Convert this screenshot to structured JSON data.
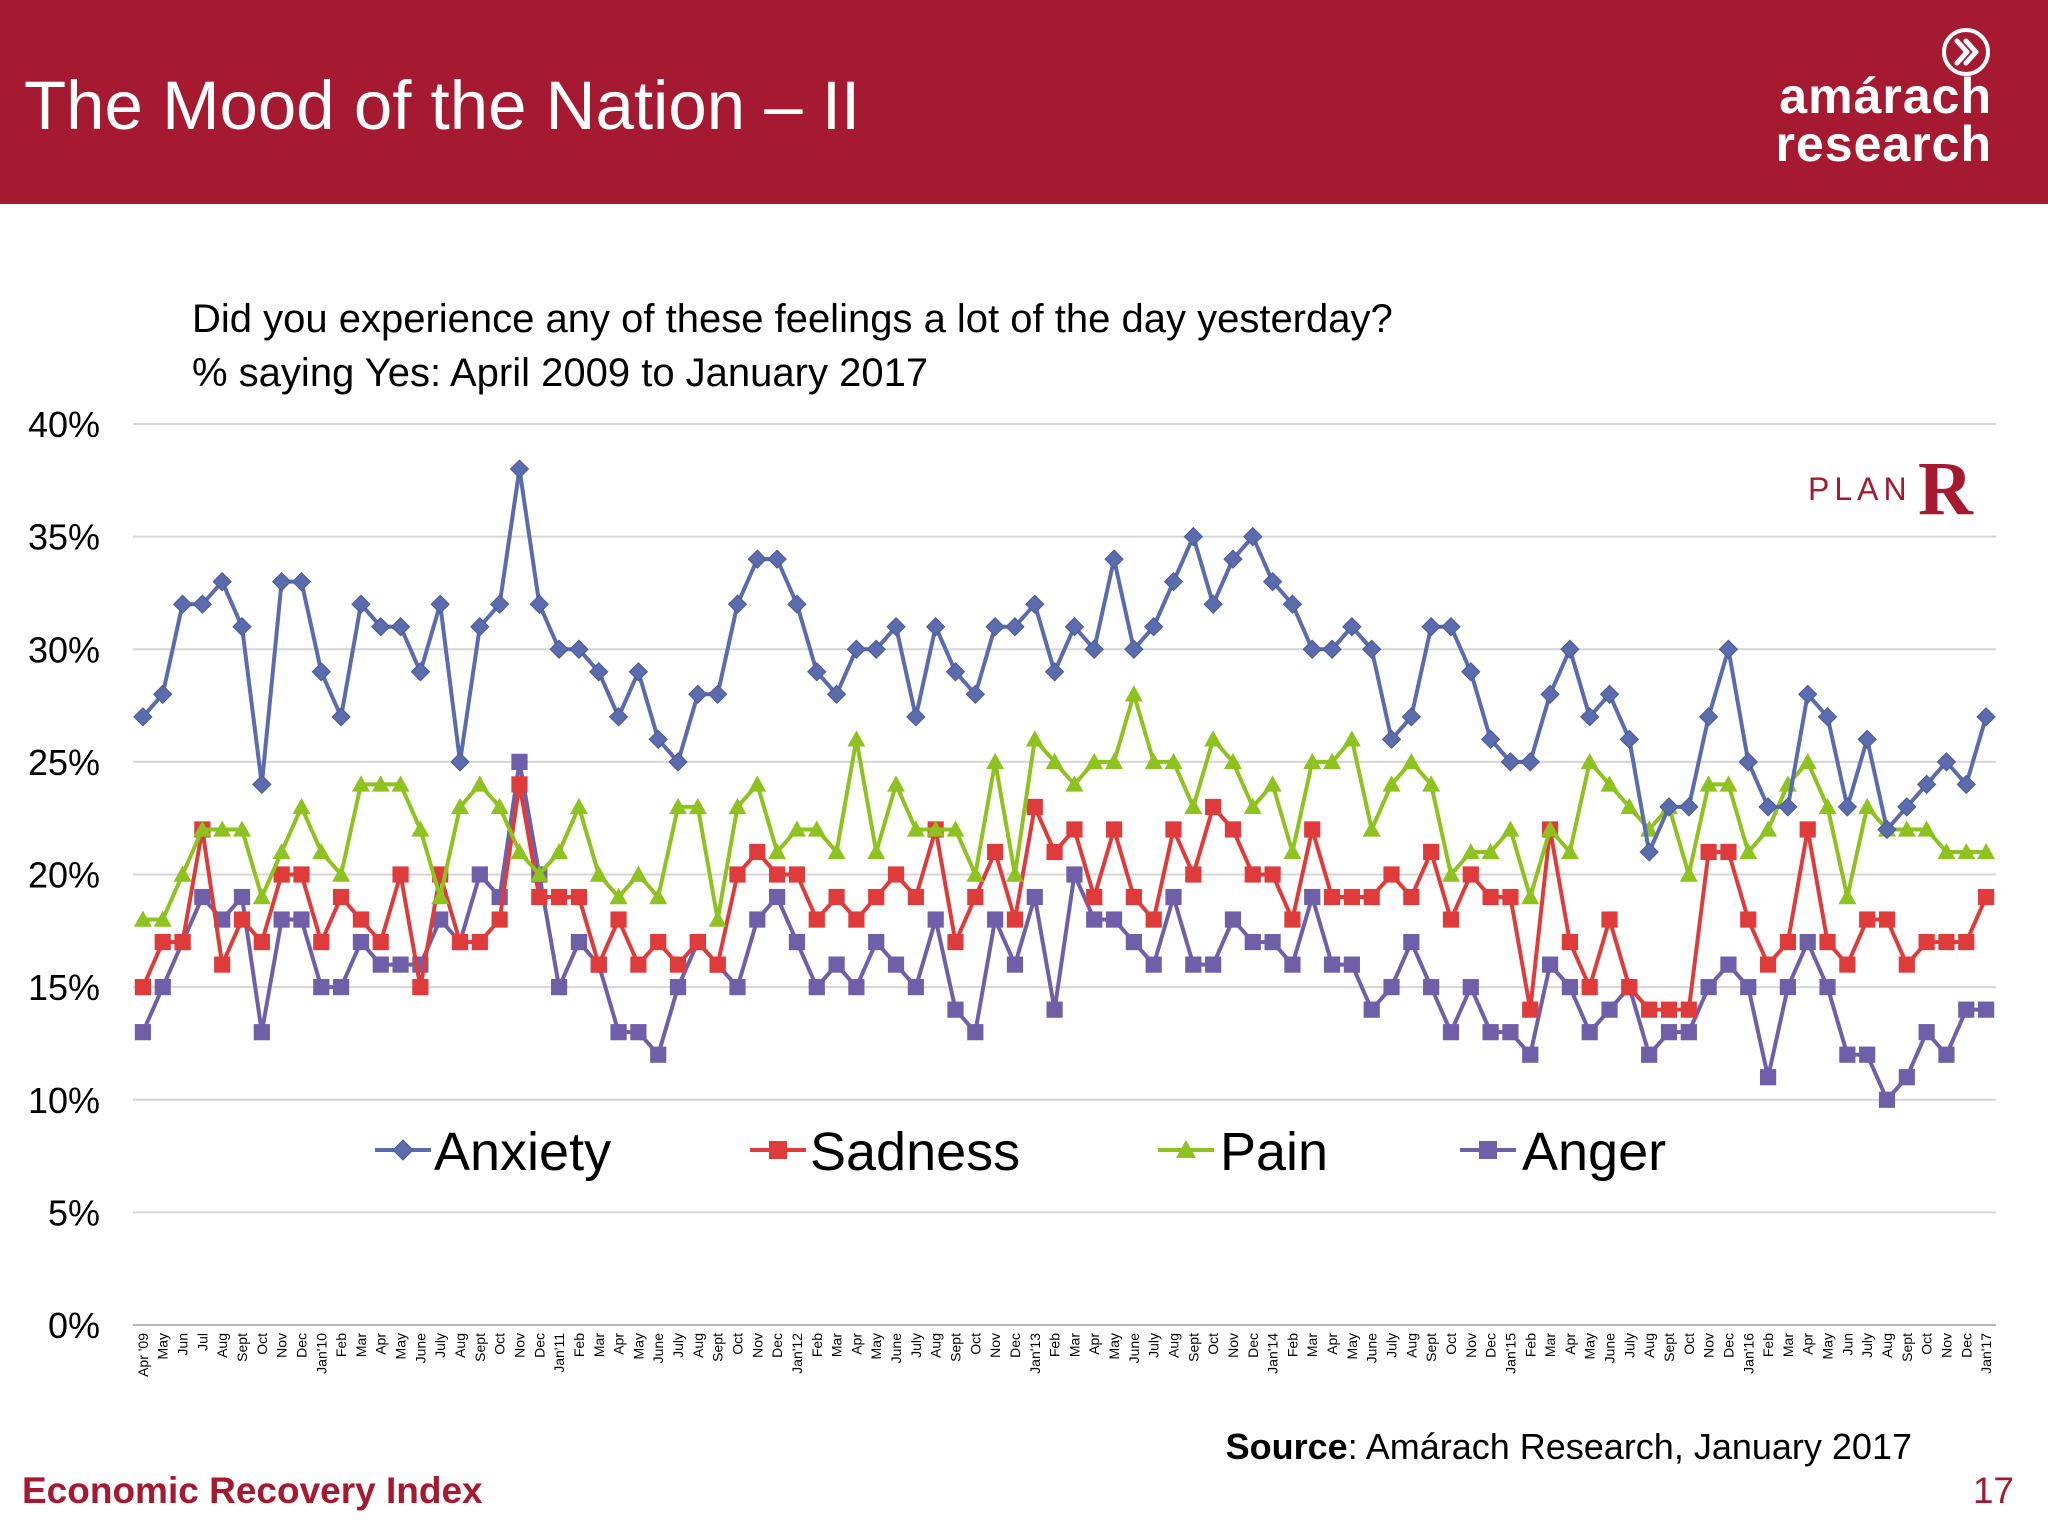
{
  "slide": {
    "title": "The Mood of the Nation – II",
    "logo_line1": "amárach",
    "logo_line2": "research",
    "question_line1": "Did you experience any of these feelings a lot of the day yesterday?",
    "question_line2": "% saying Yes: April 2009 to January 2017",
    "source_label": "Source",
    "source_text": ": Amárach Research, January 2017",
    "footer": "Economic Recovery Index",
    "page_number": "17",
    "plan_logo_text": "PLAN",
    "plan_logo_letter": "R"
  },
  "colors": {
    "header": "#a51931",
    "Anxiety": "#5b6cae",
    "Sadness": "#e03b3b",
    "Pain": "#8dc21f",
    "Anger": "#6f5fa8"
  },
  "chart_data": {
    "type": "line",
    "ylim": [
      0,
      40
    ],
    "yticks": [
      "0%",
      "5%",
      "10%",
      "15%",
      "20%",
      "25%",
      "30%",
      "35%",
      "40%"
    ],
    "grid": true,
    "legend_position": "inside-center",
    "categories": [
      "Apr '09",
      "May",
      "Jun",
      "Jul",
      "Aug",
      "Sept",
      "Oct",
      "Nov",
      "Dec",
      "Jan'10",
      "Feb",
      "Mar",
      "Apr",
      "May",
      "June",
      "July",
      "Aug",
      "Sept",
      "Oct",
      "Nov",
      "Dec",
      "Jan'11",
      "Feb",
      "Mar",
      "Apr",
      "May",
      "June",
      "July",
      "Aug",
      "Sept",
      "Oct",
      "Nov",
      "Dec",
      "Jan'12",
      "Feb",
      "Mar",
      "Apr",
      "May",
      "June",
      "July",
      "Aug",
      "Sept",
      "Oct",
      "Nov",
      "Dec",
      "Jan'13",
      "Feb",
      "Mar",
      "Apr",
      "May",
      "June",
      "July",
      "Aug",
      "Sept",
      "Oct",
      "Nov",
      "Dec",
      "Jan'14",
      "Feb",
      "Mar",
      "Apr",
      "May",
      "June",
      "July",
      "Aug",
      "Sept",
      "Oct",
      "Nov",
      "Dec",
      "Jan'15",
      "Feb",
      "Mar",
      "Apr",
      "May",
      "June",
      "July",
      "Aug",
      "Sept",
      "Oct",
      "Nov",
      "Dec",
      "Jan'16",
      "Feb",
      "Mar",
      "Apr",
      "May",
      "Jun",
      "July",
      "Aug",
      "Sept",
      "Oct",
      "Nov",
      "Dec",
      "Jan'17"
    ],
    "series": [
      {
        "name": "Anxiety",
        "marker": "diamond",
        "values": [
          27,
          28,
          32,
          32,
          33,
          31,
          24,
          33,
          33,
          29,
          27,
          32,
          31,
          31,
          29,
          32,
          25,
          31,
          32,
          38,
          32,
          30,
          30,
          29,
          27,
          29,
          26,
          25,
          28,
          28,
          32,
          34,
          34,
          32,
          29,
          28,
          30,
          30,
          31,
          27,
          31,
          29,
          28,
          31,
          31,
          32,
          29,
          31,
          30,
          34,
          30,
          31,
          33,
          35,
          32,
          34,
          35,
          33,
          32,
          30,
          30,
          31,
          30,
          26,
          27,
          31,
          31,
          29,
          26,
          25,
          25,
          28,
          30,
          27,
          28,
          26,
          21,
          23,
          23,
          27,
          30,
          25,
          23,
          23,
          28,
          27,
          23,
          26,
          22,
          23,
          24,
          25,
          24,
          27
        ]
      },
      {
        "name": "Sadness",
        "marker": "square",
        "values": [
          15,
          17,
          17,
          22,
          16,
          18,
          17,
          20,
          20,
          17,
          19,
          18,
          17,
          20,
          15,
          20,
          17,
          17,
          18,
          24,
          19,
          19,
          19,
          16,
          18,
          16,
          17,
          16,
          17,
          16,
          20,
          21,
          20,
          20,
          18,
          19,
          18,
          19,
          20,
          19,
          22,
          17,
          19,
          21,
          18,
          23,
          21,
          22,
          19,
          22,
          19,
          18,
          22,
          20,
          23,
          22,
          20,
          20,
          18,
          22,
          19,
          19,
          19,
          20,
          19,
          21,
          18,
          20,
          19,
          19,
          14,
          22,
          17,
          15,
          18,
          15,
          14,
          14,
          14,
          21,
          21,
          18,
          16,
          17,
          22,
          17,
          16,
          18,
          18,
          16,
          17,
          17,
          17,
          19
        ]
      },
      {
        "name": "Pain",
        "marker": "triangle",
        "values": [
          18,
          18,
          20,
          22,
          22,
          22,
          19,
          21,
          23,
          21,
          20,
          24,
          24,
          24,
          22,
          19,
          23,
          24,
          23,
          21,
          20,
          21,
          23,
          20,
          19,
          20,
          19,
          23,
          23,
          18,
          23,
          24,
          21,
          22,
          22,
          21,
          26,
          21,
          24,
          22,
          22,
          22,
          20,
          25,
          20,
          26,
          25,
          24,
          25,
          25,
          28,
          25,
          25,
          23,
          26,
          25,
          23,
          24,
          21,
          25,
          25,
          26,
          22,
          24,
          25,
          24,
          20,
          21,
          21,
          22,
          19,
          22,
          21,
          25,
          24,
          23,
          22,
          23,
          20,
          24,
          24,
          21,
          22,
          24,
          25,
          23,
          19,
          23,
          22,
          22,
          22,
          21,
          21,
          21
        ]
      },
      {
        "name": "Anger",
        "marker": "square",
        "values": [
          13,
          15,
          17,
          19,
          18,
          19,
          13,
          18,
          18,
          15,
          15,
          17,
          16,
          16,
          16,
          18,
          17,
          20,
          19,
          25,
          20,
          15,
          17,
          16,
          13,
          13,
          12,
          15,
          17,
          16,
          15,
          18,
          19,
          17,
          15,
          16,
          15,
          17,
          16,
          15,
          18,
          14,
          13,
          18,
          16,
          19,
          14,
          20,
          18,
          18,
          17,
          16,
          19,
          16,
          16,
          18,
          17,
          17,
          16,
          19,
          16,
          16,
          14,
          15,
          17,
          15,
          13,
          15,
          13,
          13,
          12,
          16,
          15,
          13,
          14,
          15,
          12,
          13,
          13,
          15,
          16,
          15,
          11,
          15,
          17,
          15,
          12,
          12,
          10,
          11,
          13,
          12,
          14,
          14
        ]
      }
    ]
  }
}
